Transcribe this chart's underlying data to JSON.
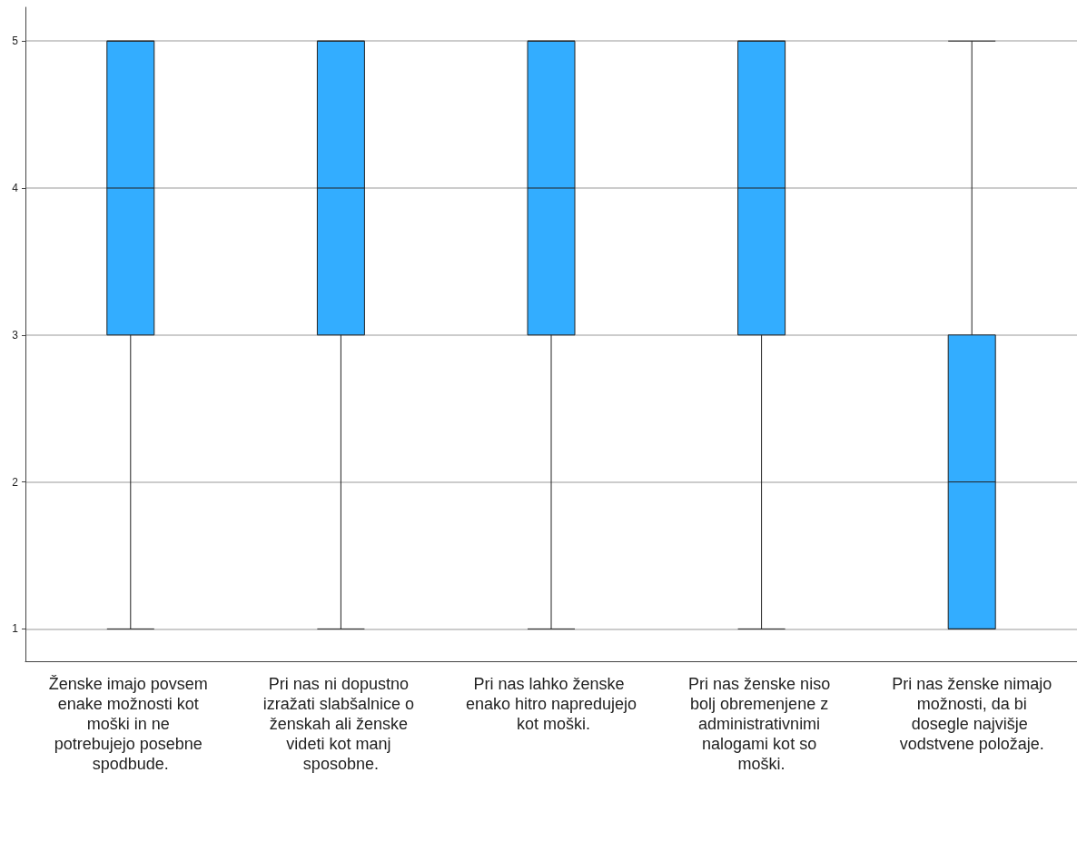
{
  "chart_data": {
    "type": "box",
    "categories": [
      "Ženske imajo povsem enake možnosti kot moški in ne potrebujejo posebne spodbude.",
      "Pri nas ni dopustno izražati slabšalnice o ženskah ali ženske videti kot manj sposobne.",
      "Pri nas lahko ženske enako hitro napredujejo kot moški.",
      "Pri nas ženske niso bolj obremenjene z administrativnimi nalogami kot so moški.",
      "Pri nas ženske nimajo možnosti, da bi dosegle najvišje vodstvene položaje."
    ],
    "series": [
      {
        "color": "#33adff",
        "boxes": [
          {
            "low": 1,
            "q1": 3,
            "median": 4,
            "q3": 5,
            "high": 5
          },
          {
            "low": 1,
            "q1": 3,
            "median": 4,
            "q3": 5,
            "high": 5
          },
          {
            "low": 1,
            "q1": 3,
            "median": 4,
            "q3": 5,
            "high": 5
          },
          {
            "low": 1,
            "q1": 3,
            "median": 4,
            "q3": 5,
            "high": 5
          },
          {
            "low": 1,
            "q1": 1,
            "median": 2,
            "q3": 3,
            "high": 5
          }
        ]
      }
    ],
    "ylim": [
      0.78,
      5.23
    ],
    "yticks": [
      1,
      2,
      3,
      4,
      5
    ],
    "grid": "y"
  }
}
